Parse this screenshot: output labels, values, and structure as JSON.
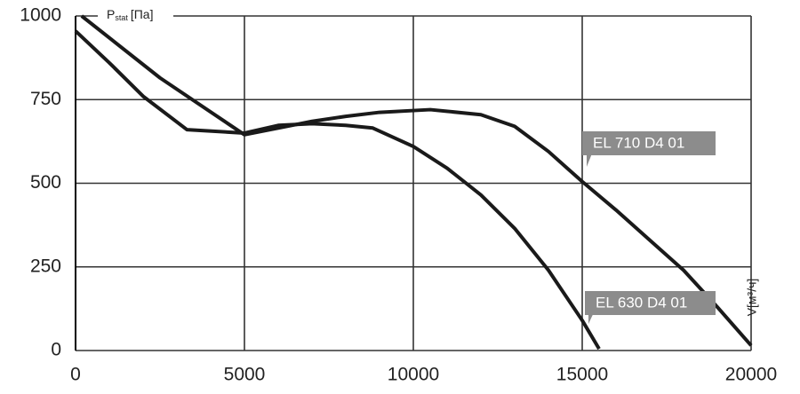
{
  "chart_data": {
    "type": "line",
    "ylabel": "P",
    "ylabel_sub": "stat",
    "ylabel_unit": "[Па]",
    "xlabel": "V[м³/ч]",
    "xlim": [
      0,
      20000
    ],
    "xticks": [
      0,
      5000,
      10000,
      15000,
      20000
    ],
    "ylim": [
      0,
      1000
    ],
    "yticks": [
      0,
      250,
      500,
      750,
      1000
    ],
    "grid": true,
    "series": [
      {
        "name": "EL 710 D4 01",
        "color": "#1a1a1a",
        "x": [
          180,
          2500,
          5000,
          6000,
          7000,
          8000,
          9000,
          10500,
          12000,
          13000,
          14000,
          15000,
          16000,
          17000,
          18000,
          19000,
          20000
        ],
        "values": [
          1000,
          815,
          645,
          665,
          685,
          700,
          712,
          720,
          705,
          670,
          595,
          505,
          420,
          330,
          240,
          130,
          15
        ]
      },
      {
        "name": "EL 630 D4 01",
        "color": "#1a1a1a",
        "x": [
          0,
          1000,
          2000,
          3300,
          5000,
          6000,
          7000,
          8000,
          8800,
          10000,
          11000,
          12000,
          13000,
          14000,
          15000,
          15500
        ],
        "values": [
          955,
          860,
          760,
          660,
          650,
          673,
          678,
          673,
          665,
          610,
          545,
          465,
          365,
          240,
          90,
          5
        ]
      }
    ]
  }
}
